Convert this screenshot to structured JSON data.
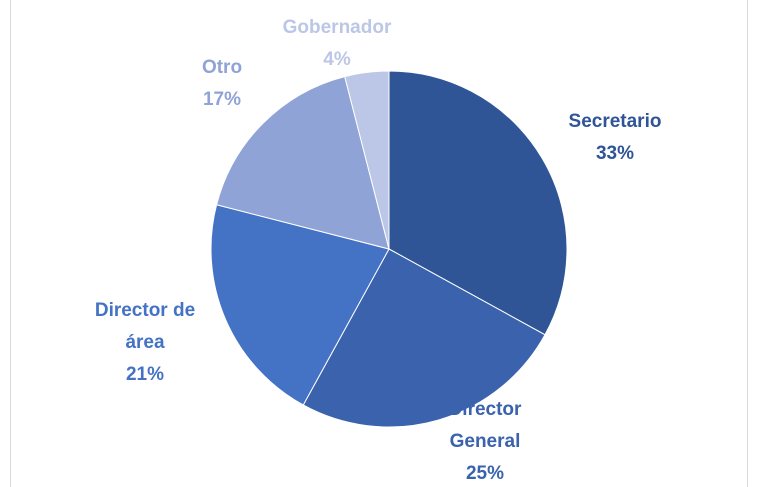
{
  "chart_data": {
    "type": "pie",
    "categories": [
      "Secretario",
      "Director General",
      "Director de área",
      "Otro",
      "Gobernador"
    ],
    "values": [
      33,
      25,
      21,
      17,
      4
    ],
    "value_labels": [
      "33%",
      "25%",
      "21%",
      "17%",
      "4%"
    ],
    "colors": [
      "#2f5597",
      "#3a62ad",
      "#4472c4",
      "#8fa3d6",
      "#bcc6e6"
    ]
  }
}
